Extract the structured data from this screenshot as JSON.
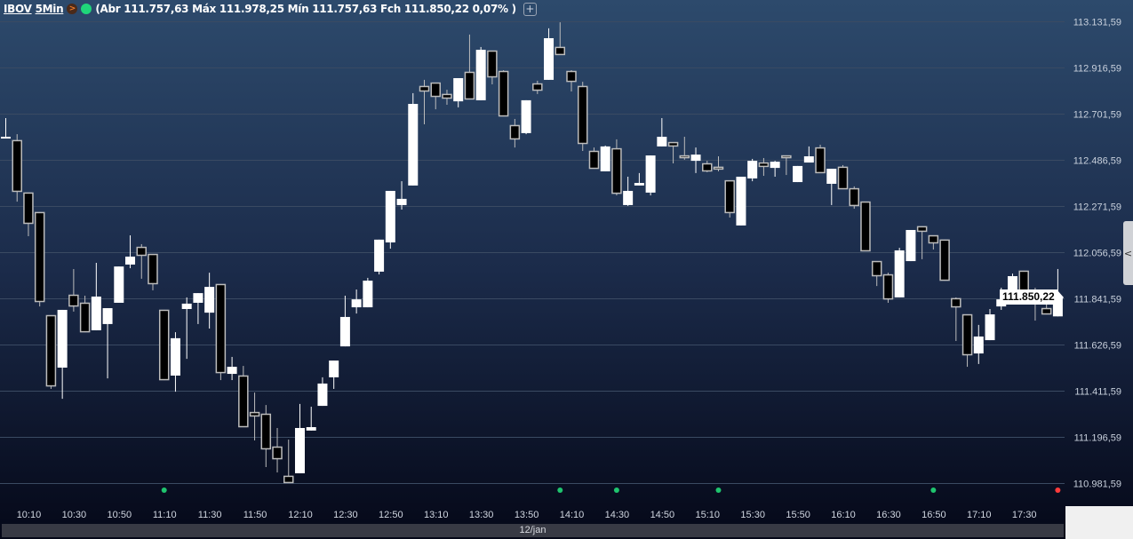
{
  "header": {
    "symbol": "IBOV",
    "timeframe": "5Min",
    "ohlc_text": "(Abr 111.757,63 Máx 111.978,25 Mín 111.757,63 Fch 111.850,22 0,07% )",
    "status_icon_orange": "chevron-right-icon",
    "status_icon_green": "green-status-dot",
    "add_icon": "+"
  },
  "price_tag": "111.850,22",
  "side_tab_icon": "<",
  "date_label": "12/jan",
  "colors": {
    "up": "#ffffff",
    "down": "#000000",
    "down_border": "#bcbcbc",
    "grid": "#3a4a62",
    "axis_text": "#c8d0dc",
    "marker_green": "#1fc46e",
    "marker_red": "#ff3b3b"
  },
  "chart_data": {
    "type": "candlestick",
    "ylim": [
      110981.59,
      113131.59
    ],
    "y_ticks": [
      "113.131,59",
      "112.916,59",
      "112.701,59",
      "112.486,59",
      "112.271,59",
      "112.056,59",
      "111.841,59",
      "111.626,59",
      "111.411,59",
      "111.196,59",
      "110.981,59"
    ],
    "y_tick_values": [
      113131.59,
      112916.59,
      112701.59,
      112486.59,
      112271.59,
      112056.59,
      111841.59,
      111626.59,
      111411.59,
      111196.59,
      110981.59
    ],
    "x_ticks": [
      "10:10",
      "10:30",
      "10:50",
      "11:10",
      "11:30",
      "11:50",
      "12:10",
      "12:30",
      "12:50",
      "13:10",
      "13:30",
      "13:50",
      "14:10",
      "14:30",
      "14:50",
      "15:10",
      "15:30",
      "15:50",
      "16:10",
      "16:30",
      "16:50",
      "17:10",
      "17:30"
    ],
    "grid": true,
    "markers": [
      {
        "time": "11:10",
        "color": "green"
      },
      {
        "time": "14:05",
        "color": "green"
      },
      {
        "time": "14:30",
        "color": "green"
      },
      {
        "time": "15:15",
        "color": "green"
      },
      {
        "time": "16:50",
        "color": "green"
      },
      {
        "time": "17:45",
        "color": "red"
      }
    ],
    "columns": [
      "time",
      "open",
      "high",
      "low",
      "close"
    ],
    "candles": [
      [
        "10:00",
        112594,
        112681,
        112594,
        112594
      ],
      [
        "10:05",
        112578,
        112606,
        112292,
        112338
      ],
      [
        "10:10",
        112334,
        112334,
        112131,
        112189
      ],
      [
        "10:15",
        112243,
        112243,
        111804,
        111825
      ],
      [
        "10:20",
        111763,
        111763,
        111420,
        111432
      ],
      [
        "10:25",
        111519,
        111788,
        111374,
        111788
      ],
      [
        "10:30",
        111858,
        111978,
        111780,
        111804
      ],
      [
        "10:35",
        111821,
        111854,
        111684,
        111684
      ],
      [
        "10:40",
        111693,
        112007,
        111693,
        111850
      ],
      [
        "10:45",
        111722,
        111796,
        111469,
        111796
      ],
      [
        "10:50",
        111821,
        111990,
        111821,
        111990
      ],
      [
        "10:55",
        111999,
        112135,
        111982,
        112036
      ],
      [
        "11:00",
        112081,
        112094,
        111933,
        112040
      ],
      [
        "11:05",
        112048,
        112048,
        111879,
        111908
      ],
      [
        "11:10",
        111788,
        111788,
        111461,
        111461
      ],
      [
        "11:15",
        111482,
        111684,
        111407,
        111656
      ],
      [
        "11:20",
        111792,
        111846,
        111560,
        111817
      ],
      [
        "11:25",
        111821,
        111866,
        111722,
        111866
      ],
      [
        "11:30",
        111775,
        111961,
        111701,
        111895
      ],
      [
        "11:35",
        111908,
        111908,
        111461,
        111494
      ],
      [
        "11:40",
        111490,
        111569,
        111461,
        111523
      ],
      [
        "11:45",
        111482,
        111527,
        111242,
        111242
      ],
      [
        "11:50",
        111312,
        111403,
        111180,
        111292
      ],
      [
        "11:55",
        111304,
        111345,
        111056,
        111139
      ],
      [
        "12:00",
        111151,
        111238,
        111031,
        111093
      ],
      [
        "12:05",
        111015,
        111184,
        110982,
        110982
      ],
      [
        "12:10",
        111027,
        111350,
        111027,
        111238
      ],
      [
        "12:15",
        111226,
        111337,
        111226,
        111242
      ],
      [
        "12:20",
        111341,
        111474,
        111341,
        111445
      ],
      [
        "12:25",
        111474,
        111552,
        111420,
        111552
      ],
      [
        "12:30",
        111618,
        111854,
        111618,
        111755
      ],
      [
        "12:35",
        111800,
        111883,
        111771,
        111837
      ],
      [
        "12:40",
        111800,
        111937,
        111800,
        111924
      ],
      [
        "12:45",
        111966,
        112115,
        111953,
        112115
      ],
      [
        "12:50",
        112102,
        112342,
        112073,
        112342
      ],
      [
        "12:55",
        112276,
        112387,
        112255,
        112305
      ],
      [
        "13:00",
        112367,
        112797,
        112367,
        112747
      ],
      [
        "13:05",
        112830,
        112859,
        112652,
        112805
      ],
      [
        "13:10",
        112846,
        112846,
        112722,
        112780
      ],
      [
        "13:15",
        112793,
        112813,
        112743,
        112772
      ],
      [
        "13:20",
        112759,
        112867,
        112731,
        112867
      ],
      [
        "13:25",
        112896,
        113070,
        112768,
        112768
      ],
      [
        "13:30",
        112764,
        113012,
        112764,
        112999
      ],
      [
        "13:35",
        112995,
        112995,
        112838,
        112871
      ],
      [
        "13:40",
        112900,
        112904,
        112689,
        112689
      ],
      [
        "13:45",
        112648,
        112677,
        112544,
        112582
      ],
      [
        "13:50",
        112611,
        112764,
        112606,
        112764
      ],
      [
        "13:55",
        112842,
        112855,
        112793,
        112809
      ],
      [
        "14:00",
        112859,
        113099,
        112859,
        113053
      ],
      [
        "14:05",
        113012,
        113127,
        112975,
        112975
      ],
      [
        "14:10",
        112900,
        112904,
        112805,
        112850
      ],
      [
        "14:15",
        112830,
        112850,
        112528,
        112561
      ],
      [
        "14:20",
        112528,
        112544,
        112445,
        112445
      ],
      [
        "14:25",
        112433,
        112553,
        112433,
        112549
      ],
      [
        "14:30",
        112540,
        112582,
        112321,
        112329
      ],
      [
        "14:35",
        112276,
        112408,
        112272,
        112342
      ],
      [
        "14:40",
        112367,
        112425,
        112367,
        112379
      ],
      [
        "14:45",
        112334,
        112507,
        112321,
        112507
      ],
      [
        "14:50",
        112549,
        112681,
        112549,
        112594
      ],
      [
        "14:55",
        112569,
        112569,
        112470,
        112549
      ],
      [
        "15:00",
        112507,
        112594,
        112487,
        112499
      ],
      [
        "15:05",
        112482,
        112544,
        112425,
        112511
      ],
      [
        "15:10",
        112470,
        112482,
        112429,
        112433
      ],
      [
        "15:15",
        112454,
        112503,
        112433,
        112445
      ],
      [
        "15:20",
        112391,
        112391,
        112218,
        112239
      ],
      [
        "15:25",
        112181,
        112408,
        112181,
        112408
      ],
      [
        "15:30",
        112400,
        112491,
        112387,
        112482
      ],
      [
        "15:35",
        112474,
        112495,
        112412,
        112454
      ],
      [
        "15:40",
        112449,
        112482,
        112408,
        112478
      ],
      [
        "15:45",
        112507,
        112507,
        112416,
        112499
      ],
      [
        "15:50",
        112383,
        112458,
        112383,
        112458
      ],
      [
        "15:55",
        112474,
        112549,
        112474,
        112503
      ],
      [
        "16:00",
        112544,
        112557,
        112425,
        112425
      ],
      [
        "16:05",
        112375,
        112445,
        112276,
        112445
      ],
      [
        "16:10",
        112454,
        112462,
        112350,
        112350
      ],
      [
        "16:15",
        112354,
        112363,
        112259,
        112272
      ],
      [
        "16:20",
        112292,
        112292,
        112061,
        112061
      ],
      [
        "16:25",
        112015,
        112015,
        111899,
        111945
      ],
      [
        "16:30",
        111953,
        111961,
        111821,
        111837
      ],
      [
        "16:35",
        111846,
        112077,
        111846,
        112065
      ],
      [
        "16:40",
        112015,
        112160,
        112015,
        112160
      ],
      [
        "16:45",
        112177,
        112177,
        112024,
        112152
      ],
      [
        "16:50",
        112135,
        112135,
        112069,
        112098
      ],
      [
        "16:55",
        112115,
        112115,
        111924,
        111924
      ],
      [
        "17:00",
        111842,
        111846,
        111643,
        111800
      ],
      [
        "17:05",
        111767,
        111767,
        111523,
        111577
      ],
      [
        "17:10",
        111585,
        111718,
        111536,
        111664
      ],
      [
        "17:15",
        111647,
        111792,
        111647,
        111767
      ],
      [
        "17:20",
        111804,
        111891,
        111788,
        111837
      ],
      [
        "17:25",
        111837,
        111957,
        111837,
        111945
      ],
      [
        "17:30",
        111970,
        111970,
        111817,
        111817
      ],
      [
        "17:35",
        111842,
        111891,
        111738,
        111817
      ],
      [
        "17:40",
        111796,
        111837,
        111767,
        111767
      ],
      [
        "17:45",
        111757.63,
        111978.25,
        111757.63,
        111850.22
      ]
    ]
  }
}
